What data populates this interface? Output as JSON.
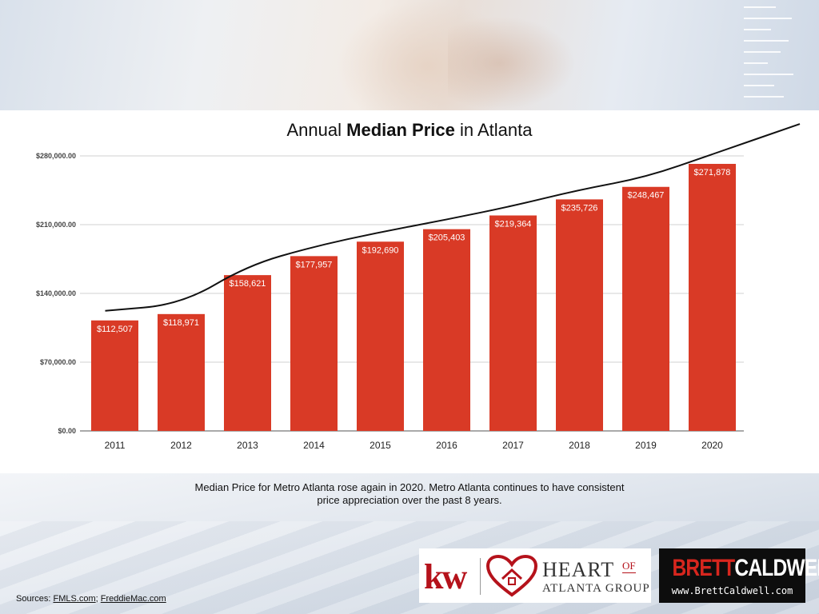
{
  "chart_data": {
    "type": "bar",
    "title_prefix": "Annual",
    "title_bold": "Median Price",
    "title_suffix": "in Atlanta",
    "categories": [
      "2011",
      "2012",
      "2013",
      "2014",
      "2015",
      "2016",
      "2017",
      "2018",
      "2019",
      "2020"
    ],
    "values": [
      112507,
      118971,
      158621,
      177957,
      192690,
      205403,
      219364,
      235726,
      248467,
      271878
    ],
    "value_labels": [
      "$112,507",
      "$118,971",
      "$158,621",
      "$177,957",
      "$192,690",
      "$205,403",
      "$219,364",
      "$235,726",
      "$248,467",
      "$271,878"
    ],
    "y_ticks": [
      0,
      70000,
      140000,
      210000,
      280000
    ],
    "y_tick_labels": [
      "$0.00",
      "$70,000.00",
      "$140,000.00",
      "$210,000.00",
      "$280,000.00"
    ],
    "ylim": [
      0,
      280000
    ],
    "grid": true,
    "bar_color": "#d93a26",
    "trendline": {
      "type": "line",
      "color": "#111111"
    }
  },
  "caption_line1": "Median Price for Metro Atlanta rose again in 2020.  Metro Atlanta continues to have consistent",
  "caption_line2": "price appreciation over the past 8 years.",
  "sources": {
    "prefix": "Sources: ",
    "link1": "FMLS.com",
    "separator": "; ",
    "link2": "FreddieMac.com"
  },
  "logos": {
    "kw_text": "kw",
    "heart_word": "HEART",
    "heart_of": "OF",
    "heart_group": "ATLANTA GROUP",
    "bc_name_part1": "BRETT",
    "bc_name_part2": "CALDWELL",
    "bc_url": "www.BrettCaldwell.com",
    "accent_color": "#b5121b"
  }
}
